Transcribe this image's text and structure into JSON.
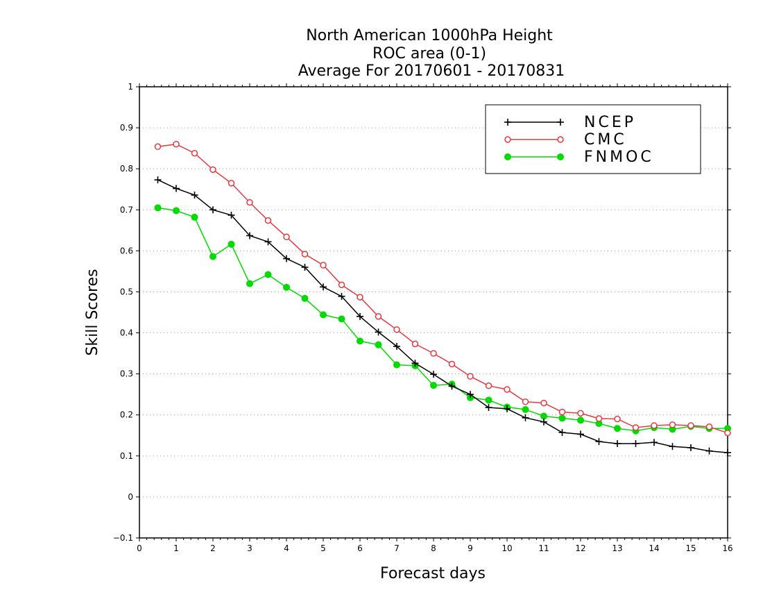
{
  "chart_data": {
    "type": "line",
    "title": [
      "North American 1000hPa Height",
      "ROC area (0-1)",
      "Average For 20170601 - 20170831"
    ],
    "xlabel": "Forecast days",
    "ylabel": "Skill Scores",
    "xlim": [
      0,
      16
    ],
    "ylim": [
      -0.1,
      1
    ],
    "xticks": [
      "0",
      "1",
      "2",
      "3",
      "4",
      "5",
      "6",
      "7",
      "8",
      "9",
      "10",
      "11",
      "12",
      "13",
      "14",
      "15",
      "16"
    ],
    "yticks": [
      "−0.1",
      "0",
      "0.1",
      "0.2",
      "0.3",
      "0.4",
      "0.5",
      "0.6",
      "0.7",
      "0.8",
      "0.9",
      "1"
    ],
    "grid": true,
    "legend_position": "top-right",
    "x": [
      0.5,
      1,
      1.5,
      2,
      2.5,
      3,
      3.5,
      4,
      4.5,
      5,
      5.5,
      6,
      6.5,
      7,
      7.5,
      8,
      8.5,
      9,
      9.5,
      10,
      10.5,
      11,
      11.5,
      12,
      12.5,
      13,
      13.5,
      14,
      14.5,
      15,
      15.5,
      16
    ],
    "series": [
      {
        "name": "NCEP",
        "color": "#000000",
        "marker": "plus",
        "values": [
          0.773,
          0.752,
          0.736,
          0.7,
          0.687,
          0.637,
          0.622,
          0.581,
          0.56,
          0.512,
          0.489,
          0.44,
          0.402,
          0.367,
          0.326,
          0.299,
          0.27,
          0.25,
          0.218,
          0.215,
          0.193,
          0.183,
          0.157,
          0.153,
          0.135,
          0.13,
          0.13,
          0.133,
          0.123,
          0.12,
          0.112,
          0.108
        ]
      },
      {
        "name": "CMC",
        "color": "#e8383d",
        "marker": "open-circle",
        "values": [
          0.854,
          0.86,
          0.838,
          0.798,
          0.765,
          0.718,
          0.674,
          0.634,
          0.592,
          0.565,
          0.517,
          0.487,
          0.44,
          0.408,
          0.373,
          0.35,
          0.324,
          0.294,
          0.271,
          0.262,
          0.232,
          0.229,
          0.207,
          0.204,
          0.191,
          0.19,
          0.169,
          0.174,
          0.176,
          0.174,
          0.171,
          0.156
        ]
      },
      {
        "name": "FNMOC",
        "color": "#00dc00",
        "marker": "filled-circle",
        "values": [
          0.705,
          0.698,
          0.682,
          0.586,
          0.616,
          0.52,
          0.542,
          0.511,
          0.484,
          0.444,
          0.434,
          0.38,
          0.371,
          0.322,
          0.32,
          0.272,
          0.275,
          0.242,
          0.236,
          0.219,
          0.213,
          0.197,
          0.192,
          0.187,
          0.179,
          0.167,
          0.161,
          0.169,
          0.165,
          0.172,
          0.167,
          0.167
        ]
      }
    ]
  }
}
